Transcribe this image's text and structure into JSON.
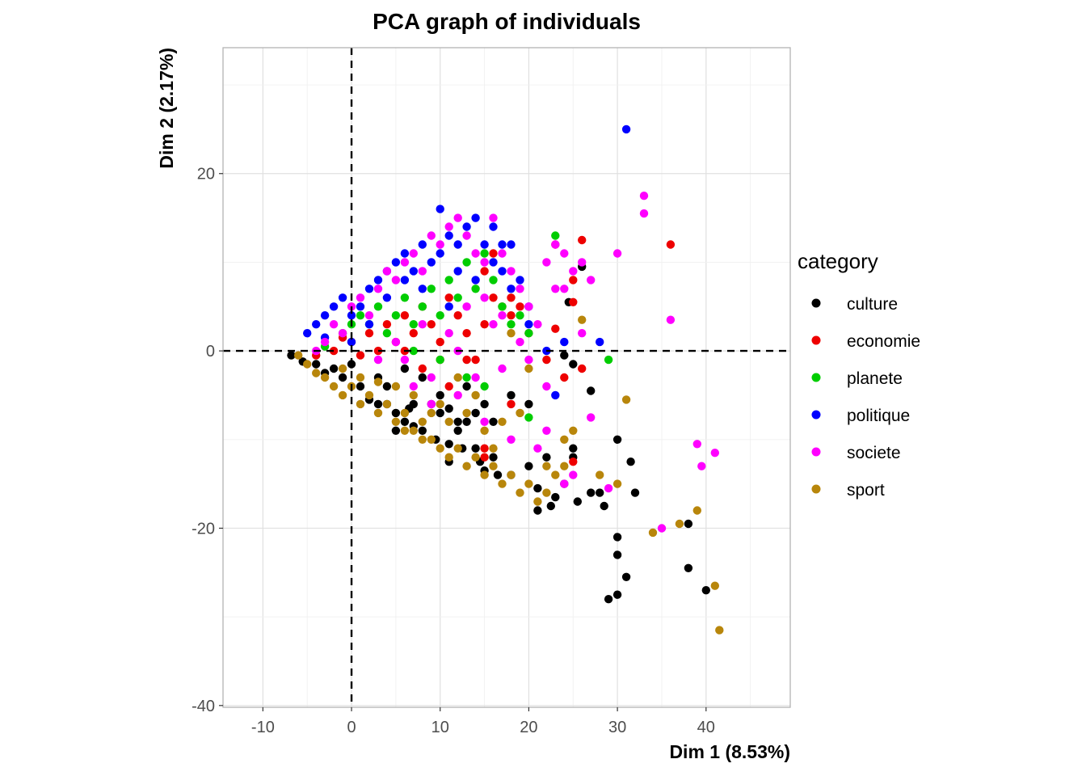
{
  "chart_data": {
    "type": "scatter",
    "title": "PCA graph of individuals",
    "xlabel": "Dim 1 (8.53%)",
    "ylabel": "Dim 2 (2.17%)",
    "xlim": [
      -14.5,
      49.5
    ],
    "ylim": [
      -40.2,
      34.2
    ],
    "xticks": [
      -10,
      0,
      10,
      20,
      30,
      40
    ],
    "yticks": [
      -40,
      -20,
      0,
      20
    ],
    "grid": true,
    "reference_lines": {
      "x": 0,
      "y": 0,
      "style": "dashed"
    },
    "legend": {
      "title": "category",
      "position": "right",
      "entries": [
        {
          "label": "culture",
          "color": "#000000"
        },
        {
          "label": "economie",
          "color": "#ee0000"
        },
        {
          "label": "planete",
          "color": "#00cd00"
        },
        {
          "label": "politique",
          "color": "#0000ff"
        },
        {
          "label": "societe",
          "color": "#ff00ff"
        },
        {
          "label": "sport",
          "color": "#b8860b"
        }
      ]
    },
    "series": [
      {
        "name": "culture",
        "color": "#000000",
        "points": [
          [
            -6.8,
            -0.5
          ],
          [
            -5.5,
            -1.2
          ],
          [
            -4.0,
            -1.5
          ],
          [
            -3.0,
            -2.5
          ],
          [
            -1.0,
            -3.0
          ],
          [
            1,
            -4
          ],
          [
            2,
            -5.5
          ],
          [
            3,
            -6
          ],
          [
            4,
            -4
          ],
          [
            5,
            -7
          ],
          [
            5,
            -9
          ],
          [
            6,
            -8
          ],
          [
            7,
            -8.5
          ],
          [
            8,
            -9
          ],
          [
            9,
            -6
          ],
          [
            9.5,
            -10
          ],
          [
            10,
            -7
          ],
          [
            11,
            -10.5
          ],
          [
            12,
            -9
          ],
          [
            12.5,
            -11
          ],
          [
            11,
            -12.5
          ],
          [
            14,
            -11
          ],
          [
            14.5,
            -12.5
          ],
          [
            15,
            -13.5
          ],
          [
            16,
            -12
          ],
          [
            16.5,
            -14
          ],
          [
            13,
            -8
          ],
          [
            18,
            -14
          ],
          [
            20,
            -13
          ],
          [
            21,
            -15.5
          ],
          [
            21,
            -18
          ],
          [
            22,
            -12
          ],
          [
            22.5,
            -17.5
          ],
          [
            23,
            -16.5
          ],
          [
            24,
            -15
          ],
          [
            25,
            -11
          ],
          [
            25,
            -12
          ],
          [
            25.5,
            -17
          ],
          [
            27,
            -16
          ],
          [
            28,
            -16
          ],
          [
            28.5,
            -17.5
          ],
          [
            29,
            -28
          ],
          [
            30,
            -10
          ],
          [
            30,
            -21
          ],
          [
            30,
            -23
          ],
          [
            30,
            -27.5
          ],
          [
            31,
            -25.5
          ],
          [
            31.5,
            -12.5
          ],
          [
            32,
            -16
          ],
          [
            27,
            -4.5
          ],
          [
            25,
            -1.5
          ],
          [
            24,
            -0.5
          ],
          [
            24.5,
            5.5
          ],
          [
            26,
            9.5
          ],
          [
            38,
            -19.5
          ],
          [
            38,
            -24.5
          ],
          [
            40,
            -27
          ],
          [
            13,
            -4
          ],
          [
            10,
            -5
          ],
          [
            8,
            -3
          ],
          [
            15,
            -6
          ],
          [
            18,
            -5
          ],
          [
            20,
            -6
          ],
          [
            6,
            -2
          ],
          [
            3,
            -3
          ],
          [
            -2,
            -2
          ],
          [
            0,
            -1.5
          ],
          [
            7,
            -6
          ],
          [
            11,
            -6.5
          ],
          [
            16,
            -8
          ],
          [
            14,
            -7
          ],
          [
            4,
            -6
          ],
          [
            6.5,
            -6.5
          ],
          [
            12,
            -8
          ]
        ]
      },
      {
        "name": "economie",
        "color": "#ee0000",
        "points": [
          [
            -4,
            -0.5
          ],
          [
            -2,
            0
          ],
          [
            0,
            1
          ],
          [
            2,
            2
          ],
          [
            3,
            0
          ],
          [
            4,
            3
          ],
          [
            5,
            1
          ],
          [
            6,
            4
          ],
          [
            7,
            2
          ],
          [
            8,
            5
          ],
          [
            9,
            3
          ],
          [
            10,
            1
          ],
          [
            11,
            6
          ],
          [
            12,
            4
          ],
          [
            13,
            2
          ],
          [
            14,
            -1
          ],
          [
            15,
            3
          ],
          [
            16,
            6
          ],
          [
            17,
            5
          ],
          [
            18,
            4
          ],
          [
            19,
            5
          ],
          [
            20,
            2
          ],
          [
            15,
            9
          ],
          [
            16,
            11
          ],
          [
            18,
            6
          ],
          [
            22,
            -1
          ],
          [
            23,
            12
          ],
          [
            24,
            -3
          ],
          [
            25,
            8
          ],
          [
            25,
            5.5
          ],
          [
            26,
            12.5
          ],
          [
            23,
            2.5
          ],
          [
            26,
            -2
          ],
          [
            36,
            12
          ],
          [
            15,
            -11
          ],
          [
            18,
            -6
          ],
          [
            15,
            -12
          ],
          [
            25,
            -12.5
          ],
          [
            11,
            -4
          ],
          [
            13,
            -1
          ],
          [
            8,
            -2
          ],
          [
            1,
            -0.5
          ],
          [
            -1,
            1.5
          ],
          [
            6,
            0
          ],
          [
            10,
            -1
          ]
        ]
      },
      {
        "name": "planete",
        "color": "#00cd00",
        "points": [
          [
            -3,
            0.5
          ],
          [
            -1,
            2
          ],
          [
            0,
            3
          ],
          [
            1,
            4
          ],
          [
            2,
            3
          ],
          [
            3,
            5
          ],
          [
            4,
            2
          ],
          [
            5,
            4
          ],
          [
            6,
            6
          ],
          [
            7,
            3
          ],
          [
            8,
            5
          ],
          [
            9,
            7
          ],
          [
            10,
            4
          ],
          [
            11,
            8
          ],
          [
            12,
            6
          ],
          [
            13,
            10
          ],
          [
            14,
            7
          ],
          [
            15,
            11
          ],
          [
            16,
            8
          ],
          [
            17,
            5
          ],
          [
            18,
            3
          ],
          [
            19,
            4
          ],
          [
            20,
            2
          ],
          [
            23,
            13
          ],
          [
            29,
            -1
          ],
          [
            20,
            -7.5
          ],
          [
            7,
            0
          ],
          [
            10,
            -1
          ],
          [
            13,
            -3
          ],
          [
            15,
            -4
          ]
        ]
      },
      {
        "name": "politique",
        "color": "#0000ff",
        "points": [
          [
            -5,
            2
          ],
          [
            -4,
            3
          ],
          [
            -3,
            4
          ],
          [
            -2,
            5
          ],
          [
            -1,
            6
          ],
          [
            0,
            4
          ],
          [
            1,
            5
          ],
          [
            2,
            7
          ],
          [
            3,
            8
          ],
          [
            4,
            9
          ],
          [
            5,
            10
          ],
          [
            6,
            11
          ],
          [
            7,
            9
          ],
          [
            8,
            12
          ],
          [
            9,
            10
          ],
          [
            10,
            11
          ],
          [
            11,
            13
          ],
          [
            12,
            12
          ],
          [
            13,
            14
          ],
          [
            14,
            15
          ],
          [
            15,
            12
          ],
          [
            16,
            10
          ],
          [
            17,
            12
          ],
          [
            18,
            12
          ],
          [
            19,
            8
          ],
          [
            20,
            3
          ],
          [
            22,
            0
          ],
          [
            23,
            -5
          ],
          [
            24,
            1
          ],
          [
            28,
            1
          ],
          [
            31,
            25
          ],
          [
            10,
            16
          ],
          [
            16,
            14
          ],
          [
            12,
            9
          ],
          [
            8,
            7
          ],
          [
            6,
            8
          ],
          [
            4,
            6
          ],
          [
            14,
            8
          ],
          [
            18,
            7
          ],
          [
            2,
            3
          ],
          [
            0,
            1
          ],
          [
            -3,
            1.5
          ],
          [
            20,
            5
          ],
          [
            17,
            9
          ],
          [
            11,
            5
          ]
        ]
      },
      {
        "name": "societe",
        "color": "#ff00ff",
        "points": [
          [
            -4,
            0
          ],
          [
            -3,
            1
          ],
          [
            -2,
            3
          ],
          [
            -1,
            2
          ],
          [
            0,
            5
          ],
          [
            1,
            6
          ],
          [
            2,
            4
          ],
          [
            3,
            7
          ],
          [
            4,
            9
          ],
          [
            5,
            8
          ],
          [
            6,
            10
          ],
          [
            7,
            11
          ],
          [
            8,
            9
          ],
          [
            9,
            13
          ],
          [
            10,
            12
          ],
          [
            11,
            14
          ],
          [
            12,
            15
          ],
          [
            13,
            13
          ],
          [
            14,
            11
          ],
          [
            15,
            10
          ],
          [
            16,
            15
          ],
          [
            17,
            11
          ],
          [
            18,
            9
          ],
          [
            19,
            7
          ],
          [
            20,
            5
          ],
          [
            21,
            3
          ],
          [
            22,
            10
          ],
          [
            23,
            12
          ],
          [
            24,
            11
          ],
          [
            25,
            9
          ],
          [
            26,
            10
          ],
          [
            27,
            8
          ],
          [
            30,
            11
          ],
          [
            33,
            17.5
          ],
          [
            33,
            15.5
          ],
          [
            36,
            3.5
          ],
          [
            39,
            -10.5
          ],
          [
            39.5,
            -13
          ],
          [
            41,
            -11.5
          ],
          [
            35,
            -20
          ],
          [
            29,
            -15.5
          ],
          [
            24,
            -15
          ],
          [
            27,
            -7.5
          ],
          [
            25,
            -14
          ],
          [
            22,
            -9
          ],
          [
            21,
            -11
          ],
          [
            18,
            -10
          ],
          [
            15,
            -8
          ],
          [
            12,
            -5
          ],
          [
            9,
            -3
          ],
          [
            6,
            -1
          ],
          [
            14,
            -3
          ],
          [
            17,
            -2
          ],
          [
            20,
            -1
          ],
          [
            11,
            2
          ],
          [
            8,
            3
          ],
          [
            5,
            1
          ],
          [
            3,
            -1
          ],
          [
            16,
            3
          ],
          [
            19,
            1
          ],
          [
            23,
            7
          ],
          [
            24,
            7
          ],
          [
            22,
            -4
          ],
          [
            26,
            2
          ],
          [
            17,
            4
          ],
          [
            12,
            0
          ],
          [
            9,
            -6
          ],
          [
            7,
            -4
          ],
          [
            13,
            5
          ],
          [
            15,
            6
          ]
        ]
      },
      {
        "name": "sport",
        "color": "#b8860b",
        "points": [
          [
            -6,
            -0.5
          ],
          [
            -5,
            -1.5
          ],
          [
            -4,
            -2.5
          ],
          [
            -3,
            -3
          ],
          [
            -2,
            -4
          ],
          [
            -1,
            -5
          ],
          [
            0,
            -4
          ],
          [
            1,
            -6
          ],
          [
            2,
            -5
          ],
          [
            3,
            -7
          ],
          [
            4,
            -6
          ],
          [
            5,
            -8
          ],
          [
            6,
            -7
          ],
          [
            7,
            -9
          ],
          [
            8,
            -8
          ],
          [
            9,
            -10
          ],
          [
            10,
            -11
          ],
          [
            11,
            -12
          ],
          [
            12,
            -11
          ],
          [
            13,
            -13
          ],
          [
            14,
            -12
          ],
          [
            15,
            -14
          ],
          [
            16,
            -13
          ],
          [
            17,
            -15
          ],
          [
            18,
            -14
          ],
          [
            19,
            -16
          ],
          [
            20,
            -15
          ],
          [
            21,
            -17
          ],
          [
            22,
            -16
          ],
          [
            23,
            -14
          ],
          [
            24,
            -13
          ],
          [
            25,
            -9
          ],
          [
            26,
            3.5
          ],
          [
            28,
            -14
          ],
          [
            30,
            -15
          ],
          [
            31,
            -5.5
          ],
          [
            34,
            -20.5
          ],
          [
            37,
            -19.5
          ],
          [
            39,
            -18
          ],
          [
            41,
            -26.5
          ],
          [
            41.5,
            -31.5
          ],
          [
            19,
            -7
          ],
          [
            17,
            -8
          ],
          [
            15,
            -9
          ],
          [
            13,
            -7
          ],
          [
            11,
            -8
          ],
          [
            9,
            -7
          ],
          [
            7,
            -5
          ],
          [
            5,
            -4
          ],
          [
            3,
            -3.5
          ],
          [
            1,
            -3
          ],
          [
            -1,
            -2
          ],
          [
            18,
            2
          ],
          [
            20,
            -2
          ],
          [
            14,
            -5
          ],
          [
            12,
            -3
          ],
          [
            10,
            -6
          ],
          [
            16,
            -11
          ],
          [
            22,
            -13
          ],
          [
            24,
            -10
          ],
          [
            8,
            -10
          ],
          [
            6,
            -9
          ]
        ]
      }
    ]
  }
}
